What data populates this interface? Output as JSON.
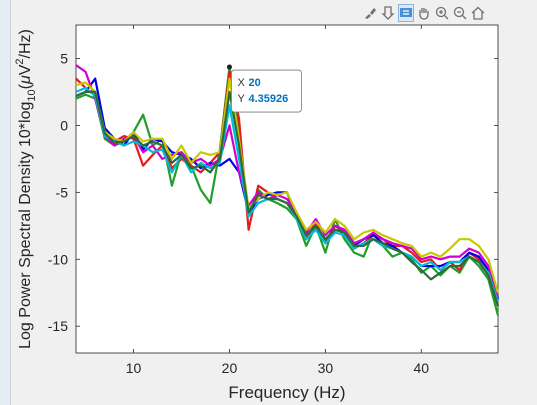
{
  "toolbar": {
    "items": [
      {
        "name": "brush-icon"
      },
      {
        "name": "export-icon"
      },
      {
        "name": "datatip-icon"
      },
      {
        "name": "pan-icon"
      },
      {
        "name": "zoom-in-icon"
      },
      {
        "name": "zoom-out-icon"
      },
      {
        "name": "home-icon"
      }
    ]
  },
  "datatip": {
    "x_label": "X",
    "x_value": "20",
    "y_label": "Y",
    "y_value": "4.35926"
  },
  "chart_data": {
    "type": "line",
    "xlabel": "Frequency (Hz)",
    "ylabel_prefix": "Log  Power Spectral Density 10*log",
    "ylabel_sub": "10",
    "ylabel_mid": "(",
    "ylabel_mu": "μ",
    "ylabel_v": "V",
    "ylabel_sup": "2",
    "ylabel_end": "/Hz)",
    "xlim": [
      4,
      48
    ],
    "ylim": [
      -17,
      7.5
    ],
    "xticks": [
      10,
      20,
      30,
      40
    ],
    "yticks": [
      5,
      0,
      -5,
      -10,
      -15
    ],
    "x": [
      4,
      5,
      6,
      7,
      8,
      9,
      10,
      11,
      12,
      13,
      14,
      15,
      16,
      17,
      18,
      19,
      20,
      21,
      22,
      23,
      24,
      25,
      26,
      27,
      28,
      29,
      30,
      31,
      32,
      33,
      34,
      35,
      36,
      37,
      38,
      39,
      40,
      41,
      42,
      43,
      44,
      45,
      46,
      47,
      48
    ],
    "series": [
      {
        "color": "#1f9e2a",
        "values": [
          2.0,
          2.3,
          2.0,
          -1.0,
          -1.5,
          -1.2,
          -0.5,
          0.8,
          -1.5,
          -1.0,
          -4.5,
          -2.0,
          -3.0,
          -4.8,
          -5.8,
          -1.8,
          4.4,
          -0.5,
          -6.8,
          -4.8,
          -5.5,
          -5.8,
          -6.2,
          -7.0,
          -9.0,
          -7.5,
          -9.5,
          -7.0,
          -8.5,
          -9.5,
          -9.8,
          -8.0,
          -9.0,
          -9.8,
          -9.5,
          -10.0,
          -11.0,
          -10.5,
          -11.2,
          -10.5,
          -11.0,
          -9.8,
          -10.5,
          -11.5,
          -14.2
        ]
      },
      {
        "color": "#e41a1c",
        "values": [
          3.5,
          2.8,
          2.2,
          -0.5,
          -1.2,
          -0.8,
          -1.0,
          -3.0,
          -2.2,
          -1.5,
          -3.2,
          -2.5,
          -3.0,
          -3.5,
          -2.8,
          -2.0,
          4.0,
          0.5,
          -7.8,
          -4.5,
          -5.0,
          -5.5,
          -5.8,
          -6.5,
          -8.5,
          -7.2,
          -8.8,
          -7.5,
          -8.0,
          -9.2,
          -8.8,
          -8.2,
          -8.5,
          -9.0,
          -9.0,
          -9.5,
          -10.2,
          -10.0,
          -10.8,
          -10.2,
          -10.8,
          -9.5,
          -10.0,
          -11.2,
          -13.5
        ]
      },
      {
        "color": "#0000e6",
        "values": [
          2.2,
          2.5,
          3.5,
          -0.2,
          -1.0,
          -1.5,
          -0.5,
          -1.8,
          -1.0,
          -1.2,
          -2.0,
          -2.2,
          -2.5,
          -3.2,
          -2.8,
          -3.0,
          -2.5,
          -3.5,
          -6.5,
          -5.5,
          -5.2,
          -5.0,
          -5.0,
          -6.8,
          -8.2,
          -7.5,
          -8.5,
          -7.8,
          -8.0,
          -9.0,
          -8.5,
          -8.2,
          -8.8,
          -9.0,
          -9.5,
          -9.8,
          -10.5,
          -10.5,
          -10.5,
          -10.2,
          -10.2,
          -9.5,
          -9.8,
          -10.8,
          -13.0
        ]
      },
      {
        "color": "#d000d0",
        "values": [
          4.5,
          4.0,
          2.0,
          -0.8,
          -1.5,
          -1.0,
          -0.8,
          -2.0,
          -1.5,
          -2.5,
          -2.2,
          -2.0,
          -2.8,
          -2.5,
          -3.0,
          -2.5,
          0.0,
          -3.5,
          -6.0,
          -5.0,
          -5.5,
          -5.2,
          -5.5,
          -6.5,
          -8.0,
          -7.0,
          -8.2,
          -7.5,
          -7.8,
          -8.8,
          -8.5,
          -8.0,
          -8.5,
          -8.8,
          -9.0,
          -9.2,
          -10.0,
          -9.8,
          -10.0,
          -9.8,
          -9.8,
          -9.2,
          -9.5,
          -10.5,
          -12.8
        ]
      },
      {
        "color": "#c8c800",
        "values": [
          3.0,
          3.2,
          2.5,
          -0.5,
          -1.0,
          -1.2,
          -0.5,
          -1.2,
          -1.0,
          -1.0,
          -2.5,
          -1.5,
          -2.8,
          -2.0,
          -2.2,
          -2.0,
          3.5,
          -1.0,
          -6.2,
          -5.5,
          -5.0,
          -5.2,
          -5.0,
          -6.5,
          -7.8,
          -7.2,
          -8.0,
          -7.0,
          -7.5,
          -8.5,
          -8.0,
          -7.8,
          -8.2,
          -8.5,
          -8.8,
          -9.0,
          -9.8,
          -9.5,
          -9.8,
          -9.2,
          -8.5,
          -8.5,
          -9.0,
          -10.0,
          -12.5
        ]
      },
      {
        "color": "#00bcd4",
        "values": [
          2.5,
          2.8,
          2.2,
          -0.8,
          -1.2,
          -1.5,
          -1.2,
          -1.5,
          -2.0,
          -1.8,
          -3.5,
          -2.2,
          -3.5,
          -2.8,
          -3.2,
          -2.8,
          1.5,
          -2.5,
          -6.8,
          -5.8,
          -5.5,
          -5.5,
          -5.8,
          -7.0,
          -8.5,
          -7.8,
          -8.8,
          -8.0,
          -8.2,
          -9.2,
          -8.8,
          -8.5,
          -9.0,
          -9.2,
          -9.5,
          -9.8,
          -10.5,
          -10.2,
          -10.8,
          -10.2,
          -10.2,
          -9.8,
          -10.2,
          -11.0,
          -13.2
        ]
      },
      {
        "color": "#2d6b3a",
        "values": [
          2.2,
          2.5,
          2.5,
          -0.6,
          -1.3,
          -1.2,
          -0.8,
          -1.5,
          -1.2,
          -1.5,
          -2.8,
          -2.2,
          -3.2,
          -3.0,
          -3.5,
          -2.5,
          2.5,
          -1.5,
          -6.5,
          -5.2,
          -5.5,
          -5.5,
          -5.8,
          -6.8,
          -8.2,
          -7.5,
          -8.5,
          -7.8,
          -8.0,
          -9.0,
          -9.0,
          -8.5,
          -8.8,
          -9.2,
          -9.5,
          -10.2,
          -10.8,
          -11.5,
          -11.0,
          -10.5,
          -10.5,
          -9.8,
          -10.2,
          -11.2,
          -13.5
        ]
      }
    ]
  }
}
